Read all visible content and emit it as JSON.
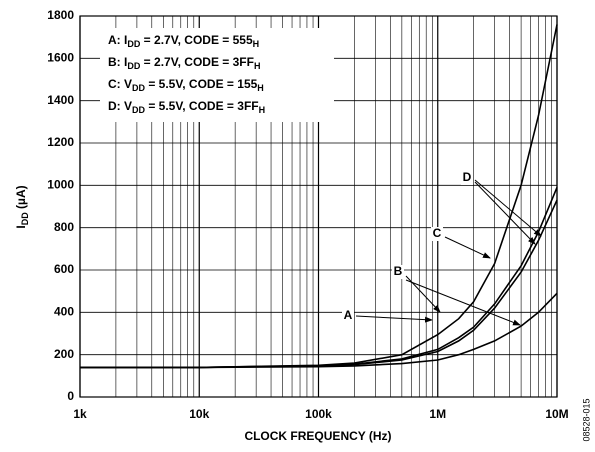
{
  "chart_data": {
    "type": "line",
    "x_label": "CLOCK FREQUENCY (Hz)",
    "y_label": [
      "I",
      "DD",
      " (µA)"
    ],
    "legend_text": [
      [
        "A: I",
        "DD",
        " = 2.7V, CODE = 555",
        "H"
      ],
      [
        "B: I",
        "DD",
        " = 2.7V, CODE = 3FF",
        "H"
      ],
      [
        "C: V",
        "DD",
        " = 5.5V, CODE = 155",
        "H"
      ],
      [
        "D: V",
        "DD",
        " = 5.5V, CODE = 3FF",
        "H"
      ]
    ],
    "figure_id": "08528-015",
    "log_x": true,
    "grid": true,
    "xlim": [
      1000,
      10000000
    ],
    "xticks": [
      {
        "value": 1000,
        "label": "1k"
      },
      {
        "value": 10000,
        "label": "10k"
      },
      {
        "value": 100000,
        "label": "100k"
      },
      {
        "value": 1000000,
        "label": "1M"
      },
      {
        "value": 10000000,
        "label": "10M"
      }
    ],
    "ylim": [
      0,
      1800
    ],
    "yticks": [
      0,
      200,
      400,
      600,
      800,
      1000,
      1200,
      1400,
      1600,
      1800
    ],
    "x": [
      1000,
      10000,
      100000,
      200000,
      500000,
      1000000,
      1500000,
      2000000,
      3000000,
      5000000,
      7000000,
      10000000
    ],
    "series": [
      {
        "name": "A",
        "color": "#000000",
        "values": [
          140,
          140,
          143,
          147,
          158,
          175,
          200,
          225,
          265,
          335,
          400,
          490
        ]
      },
      {
        "name": "B",
        "color": "#000000",
        "values": [
          140,
          140,
          147,
          153,
          175,
          215,
          265,
          315,
          420,
          590,
          740,
          930
        ]
      },
      {
        "name": "C",
        "color": "#000000",
        "values": [
          140,
          140,
          150,
          160,
          200,
          295,
          370,
          450,
          630,
          1000,
          1330,
          1760
        ]
      },
      {
        "name": "D",
        "color": "#000000",
        "values": [
          140,
          140,
          148,
          155,
          180,
          225,
          280,
          330,
          440,
          620,
          780,
          990
        ]
      }
    ]
  }
}
